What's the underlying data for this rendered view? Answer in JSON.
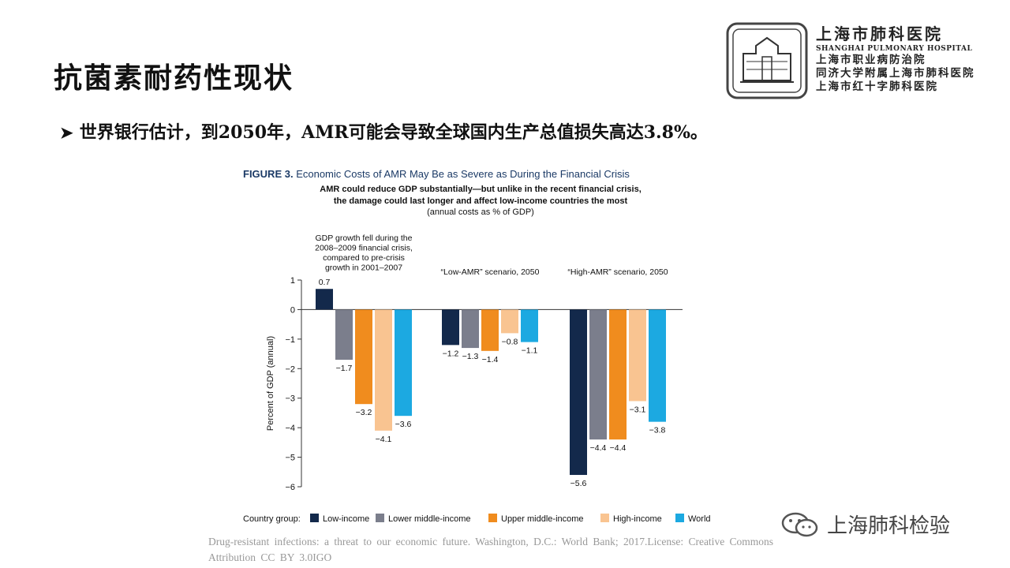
{
  "slide": {
    "title": "抗菌素耐药性现状",
    "bullet": "世界银行估计，到2050年，AMR可能会导致全球国内生产总值损失高达3.8%。"
  },
  "logo": {
    "name_cn": "上海市肺科医院",
    "name_en": "SHANGHAI PULMONARY HOSPITAL",
    "subtitles": [
      "上海市职业病防治院",
      "同济大学附属上海市肺科医院",
      "上海市红十字肺科医院"
    ]
  },
  "caption": "Drug-resistant infections: a threat to our economic future. Washington, D.C.: World Bank; 2017.License: Creative Commons Attribution CC BY 3.0IGO",
  "watermark": "上海肺科检验",
  "chart_data": {
    "type": "bar",
    "figure_label": "FIGURE 3.",
    "title": "Economic Costs of AMR May Be as Severe as During the Financial Crisis",
    "subtitle_lines": [
      "AMR could reduce GDP substantially—but unlike in the recent financial crisis,",
      "the damage could last longer and affect low-income countries the most"
    ],
    "subtitle_note": "(annual costs as % of GDP)",
    "ylabel": "Percent of GDP (annual)",
    "ylim": [
      -6,
      1
    ],
    "yticks": [
      1,
      0,
      -1,
      -2,
      -3,
      -4,
      -5,
      -6
    ],
    "groups": [
      [
        "GDP growth fell during the",
        "2008–2009 financial crisis,",
        "compared to pre-crisis",
        "growth in 2001–2007"
      ],
      [
        "“Low-AMR” scenario, 2050"
      ],
      [
        "“High-AMR” scenario, 2050"
      ]
    ],
    "legend_title": "Country group:",
    "series": [
      {
        "name": "Low-income",
        "color": "#13294b",
        "values": [
          0.7,
          -1.2,
          -5.6
        ],
        "labels": [
          "0.7",
          "−1.2",
          "−5.6"
        ]
      },
      {
        "name": "Lower middle-income",
        "color": "#7b7e8c",
        "values": [
          -1.7,
          -1.3,
          -4.4
        ],
        "labels": [
          "−1.7",
          "−1.3",
          "−4.4"
        ]
      },
      {
        "name": "Upper middle-income",
        "color": "#f08c1e",
        "values": [
          -3.2,
          -1.4,
          -4.4
        ],
        "labels": [
          "−3.2",
          "−1.4",
          "−4.4"
        ]
      },
      {
        "name": "High-income",
        "color": "#f9c491",
        "values": [
          -4.1,
          -0.8,
          -3.1
        ],
        "labels": [
          "−4.1",
          "−0.8",
          "−3.1"
        ]
      },
      {
        "name": "World",
        "color": "#1ca9e1",
        "values": [
          -3.6,
          -1.1,
          -3.8
        ],
        "labels": [
          "−3.6",
          "−1.1",
          "−3.8"
        ]
      }
    ]
  }
}
